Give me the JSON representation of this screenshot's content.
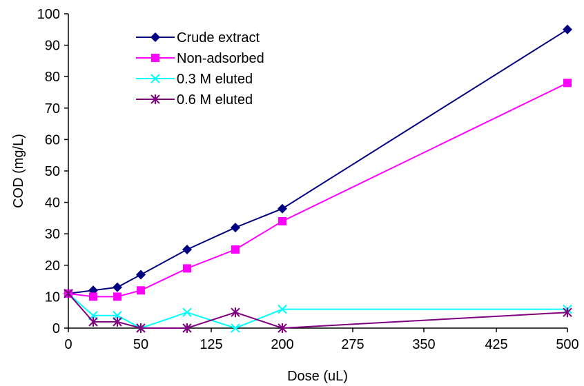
{
  "chart_data": {
    "type": "line",
    "title": "",
    "xlabel": "Dose (uL)",
    "ylabel": "COD (mg/L)",
    "ylim": [
      0,
      100
    ],
    "y_ticks": [
      "0",
      "10",
      "20",
      "30",
      "40",
      "50",
      "60",
      "70",
      "80",
      "90",
      "100"
    ],
    "x_tick_labels": [
      "0",
      "50",
      "125",
      "200",
      "275",
      "350",
      "425",
      "500"
    ],
    "x_categories": [
      "0",
      "20",
      "35",
      "50",
      "100",
      "150",
      "200",
      "500"
    ],
    "grid": false,
    "legend_position": "top-left",
    "series": [
      {
        "name": "Crude extract",
        "color": "#000080",
        "marker": "diamond",
        "values": [
          11,
          12,
          13,
          17,
          25,
          32,
          38,
          95
        ]
      },
      {
        "name": "Non-adsorbed",
        "color": "#FF00FF",
        "marker": "square",
        "values": [
          11,
          10,
          10,
          12,
          19,
          25,
          34,
          78
        ]
      },
      {
        "name": "0.3 M eluted",
        "color": "#00FFFF",
        "marker": "x",
        "values": [
          11,
          4,
          4,
          0,
          5,
          0,
          6,
          6
        ]
      },
      {
        "name": "0.6 M eluted",
        "color": "#800080",
        "marker": "star",
        "values": [
          11,
          2,
          2,
          0,
          0,
          5,
          0,
          5
        ]
      }
    ]
  }
}
